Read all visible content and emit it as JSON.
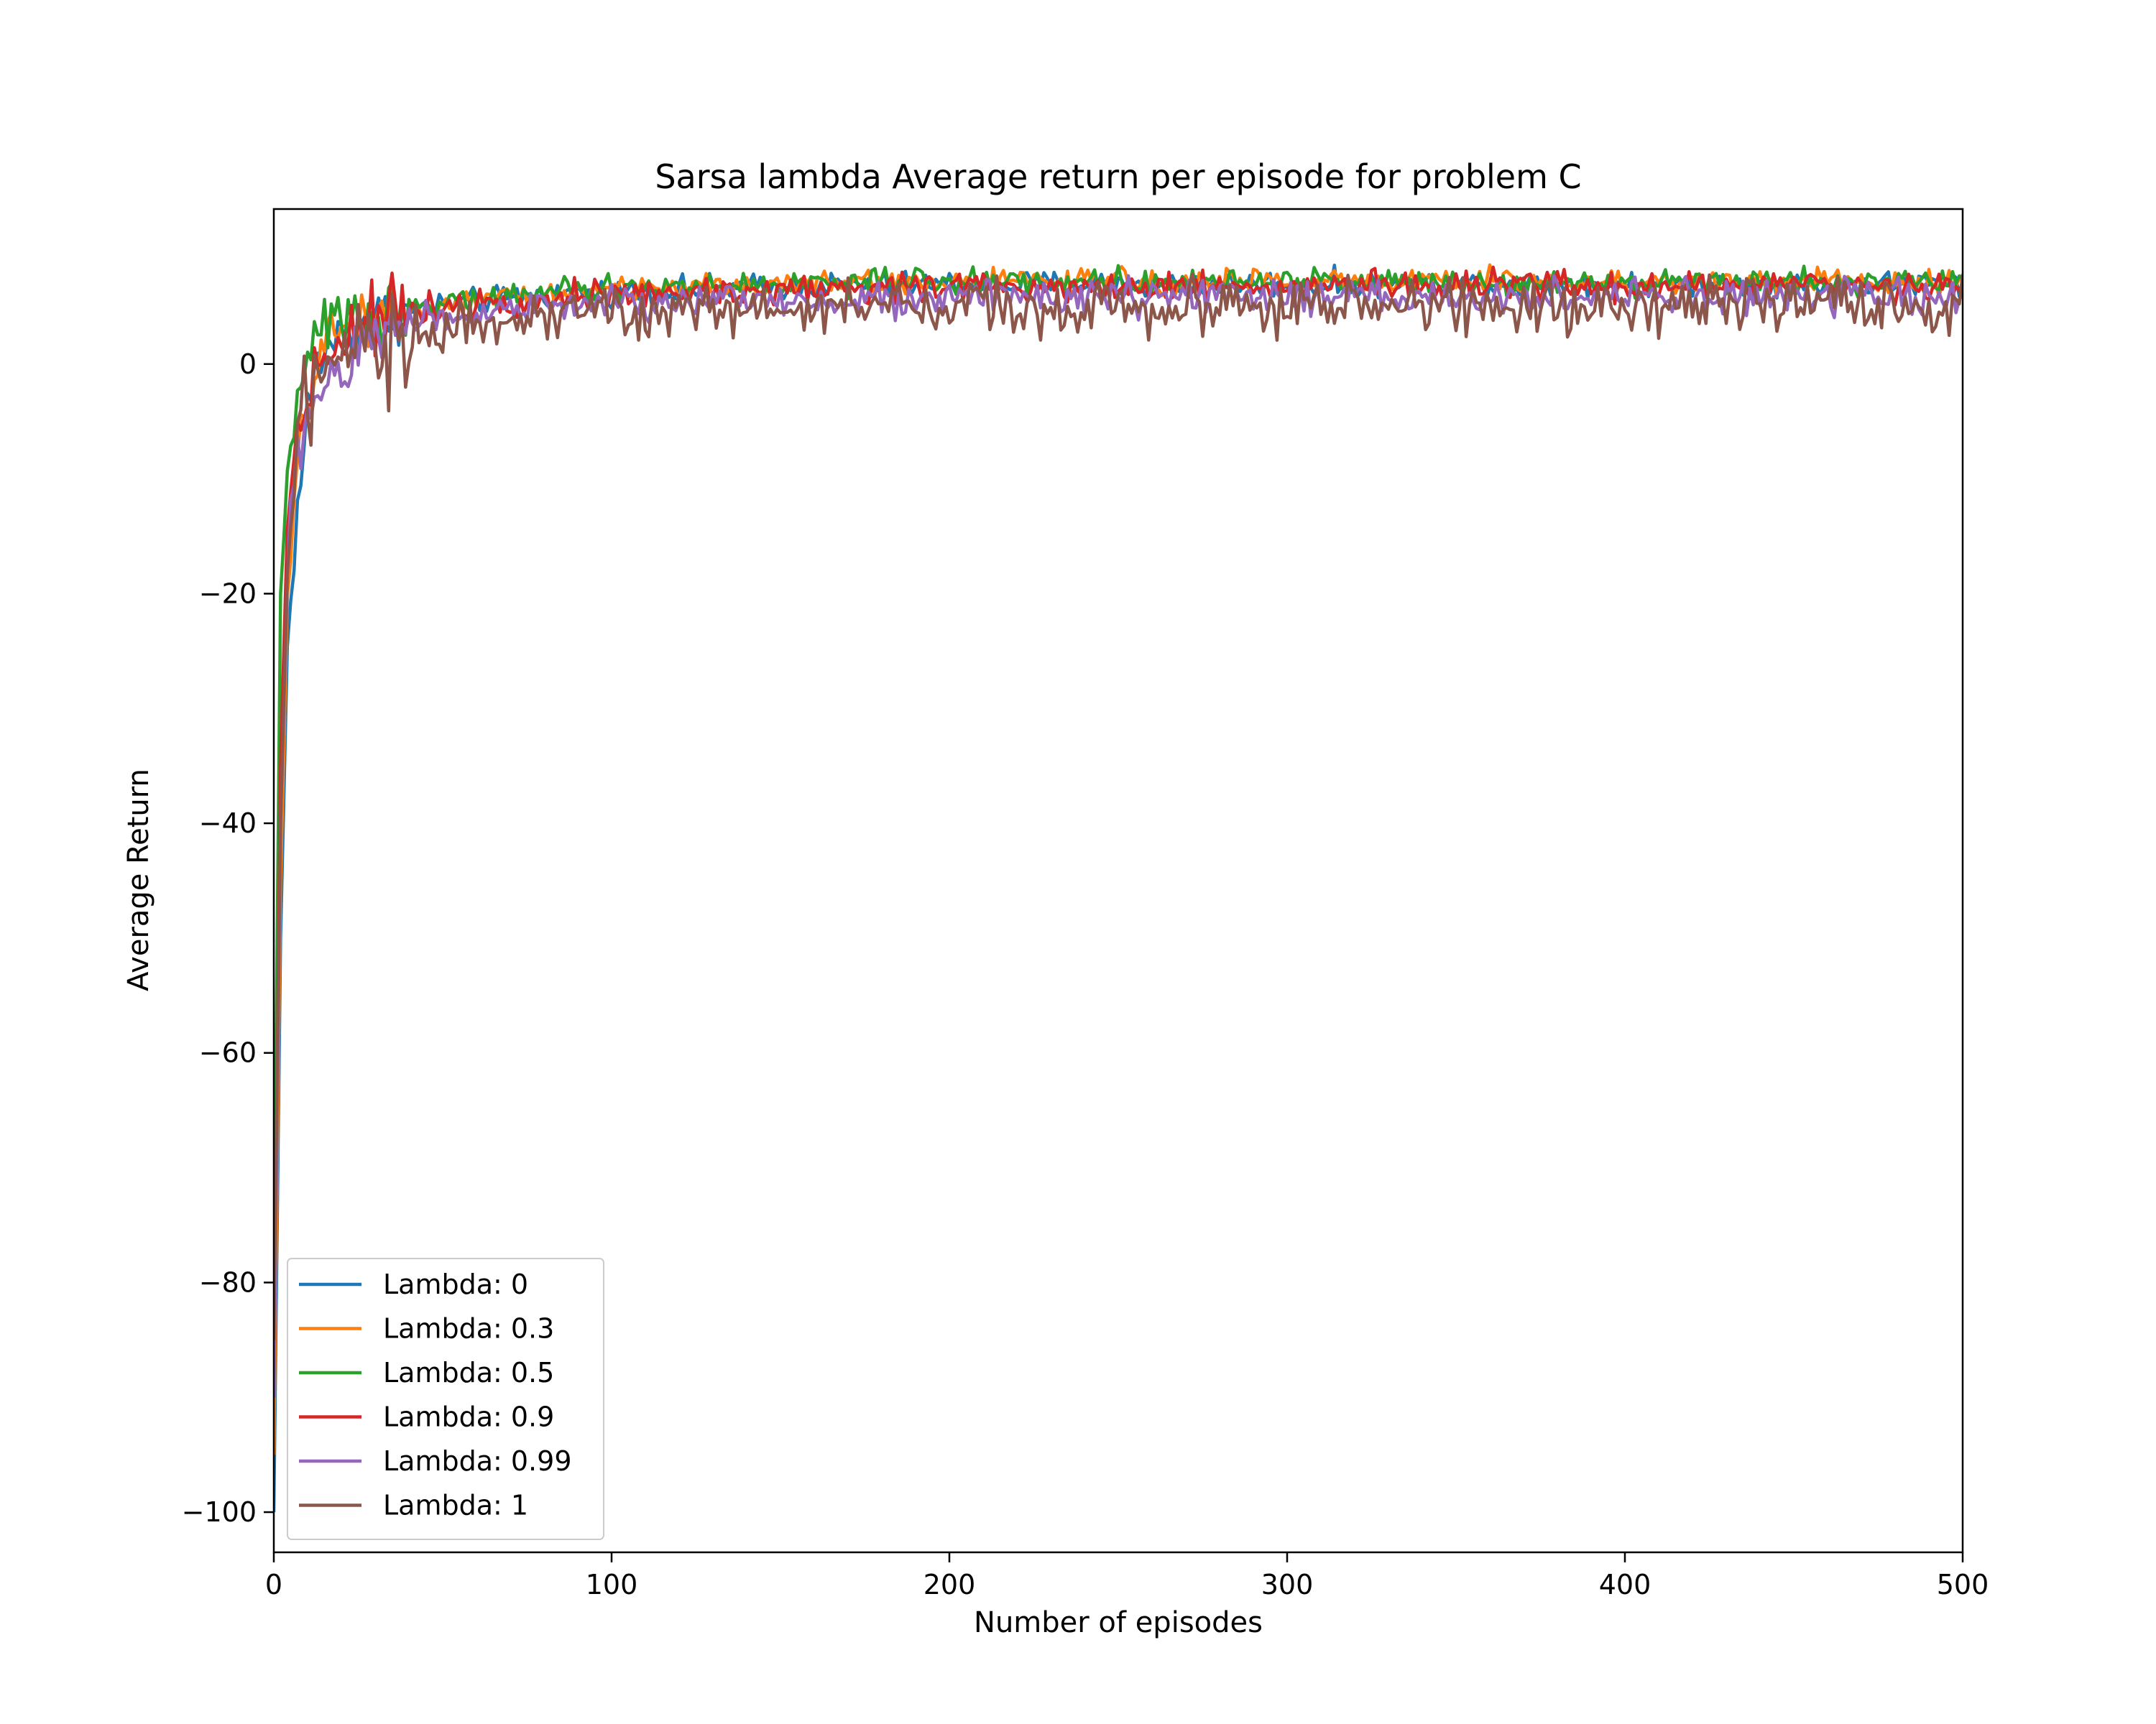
{
  "chart_data": {
    "type": "line",
    "title": "Sarsa lambda Average return per episode for problem C",
    "xlabel": "Number of episodes",
    "ylabel": "Average Return",
    "xlim": [
      0,
      500
    ],
    "ylim": [
      -103.5,
      13.5
    ],
    "xticks": [
      0,
      100,
      200,
      300,
      400,
      500
    ],
    "yticks": [
      -100,
      -80,
      -60,
      -40,
      -20,
      0
    ],
    "grid": false,
    "legend_position": "lower-left",
    "x_step": 1,
    "series": [
      {
        "name": "Lambda: 0",
        "color": "#1f77b4",
        "anchors": [
          [
            0,
            -100
          ],
          [
            2,
            -50
          ],
          [
            4,
            -25
          ],
          [
            6,
            -16
          ],
          [
            8,
            -10
          ],
          [
            10,
            -4
          ],
          [
            13,
            0
          ],
          [
            17,
            2
          ],
          [
            22,
            3
          ],
          [
            30,
            4
          ],
          [
            45,
            5
          ],
          [
            70,
            5.8
          ],
          [
            100,
            6.3
          ],
          [
            150,
            6.8
          ],
          [
            200,
            7
          ],
          [
            300,
            7
          ],
          [
            400,
            7
          ],
          [
            500,
            7
          ]
        ],
        "noise": 0.55
      },
      {
        "name": "Lambda: 0.3",
        "color": "#ff7f0e",
        "anchors": [
          [
            0,
            -95
          ],
          [
            2,
            -45
          ],
          [
            4,
            -22
          ],
          [
            6,
            -12
          ],
          [
            8,
            -7
          ],
          [
            10,
            -3
          ],
          [
            13,
            0
          ],
          [
            17,
            2.5
          ],
          [
            22,
            3.5
          ],
          [
            30,
            4.2
          ],
          [
            45,
            5
          ],
          [
            70,
            5.8
          ],
          [
            100,
            6.5
          ],
          [
            150,
            7
          ],
          [
            200,
            7.2
          ],
          [
            300,
            7.2
          ],
          [
            400,
            7.2
          ],
          [
            500,
            7.2
          ]
        ],
        "noise": 0.55
      },
      {
        "name": "Lambda: 0.5",
        "color": "#2ca02c",
        "anchors": [
          [
            0,
            -80
          ],
          [
            2,
            -20
          ],
          [
            4,
            -10
          ],
          [
            6,
            -4
          ],
          [
            8,
            -3
          ],
          [
            10,
            -1
          ],
          [
            12,
            3
          ],
          [
            17,
            3.5
          ],
          [
            22,
            3.8
          ],
          [
            30,
            4.5
          ],
          [
            45,
            5.2
          ],
          [
            70,
            6
          ],
          [
            100,
            6.5
          ],
          [
            150,
            7
          ],
          [
            200,
            7.2
          ],
          [
            300,
            7.2
          ],
          [
            400,
            7.2
          ],
          [
            500,
            7.2
          ]
        ],
        "noise": 0.55
      },
      {
        "name": "Lambda: 0.9",
        "color": "#d62728",
        "anchors": [
          [
            0,
            -90
          ],
          [
            2,
            -35
          ],
          [
            4,
            -14
          ],
          [
            6,
            -8
          ],
          [
            8,
            -5
          ],
          [
            10,
            -2
          ],
          [
            13,
            0
          ],
          [
            17,
            1.5
          ],
          [
            22,
            3
          ],
          [
            30,
            4
          ],
          [
            45,
            5
          ],
          [
            70,
            5.6
          ],
          [
            100,
            6
          ],
          [
            150,
            6.5
          ],
          [
            200,
            6.8
          ],
          [
            300,
            6.8
          ],
          [
            400,
            6.8
          ],
          [
            500,
            6.8
          ]
        ],
        "noise": 0.65
      },
      {
        "name": "Lambda: 0.99",
        "color": "#9467bd",
        "anchors": [
          [
            0,
            -90
          ],
          [
            2,
            -40
          ],
          [
            4,
            -20
          ],
          [
            6,
            -10
          ],
          [
            8,
            -6
          ],
          [
            10,
            -4
          ],
          [
            14,
            -3
          ],
          [
            18,
            -1
          ],
          [
            24,
            1
          ],
          [
            30,
            2.5
          ],
          [
            45,
            4
          ],
          [
            70,
            4.8
          ],
          [
            100,
            5.2
          ],
          [
            150,
            5.6
          ],
          [
            200,
            5.8
          ],
          [
            300,
            5.8
          ],
          [
            400,
            5.8
          ],
          [
            500,
            5.8
          ]
        ],
        "noise": 0.75
      },
      {
        "name": "Lambda: 1",
        "color": "#8c564b",
        "anchors": [
          [
            0,
            -85
          ],
          [
            2,
            -40
          ],
          [
            4,
            -18
          ],
          [
            6,
            -10
          ],
          [
            8,
            -6
          ],
          [
            10,
            -3
          ],
          [
            14,
            -2
          ],
          [
            18,
            -2
          ],
          [
            24,
            0
          ],
          [
            30,
            1.5
          ],
          [
            45,
            3
          ],
          [
            70,
            4
          ],
          [
            100,
            4.6
          ],
          [
            150,
            4.8
          ],
          [
            200,
            5
          ],
          [
            300,
            5
          ],
          [
            400,
            5
          ],
          [
            500,
            5
          ]
        ],
        "noise": 1.2
      }
    ]
  }
}
